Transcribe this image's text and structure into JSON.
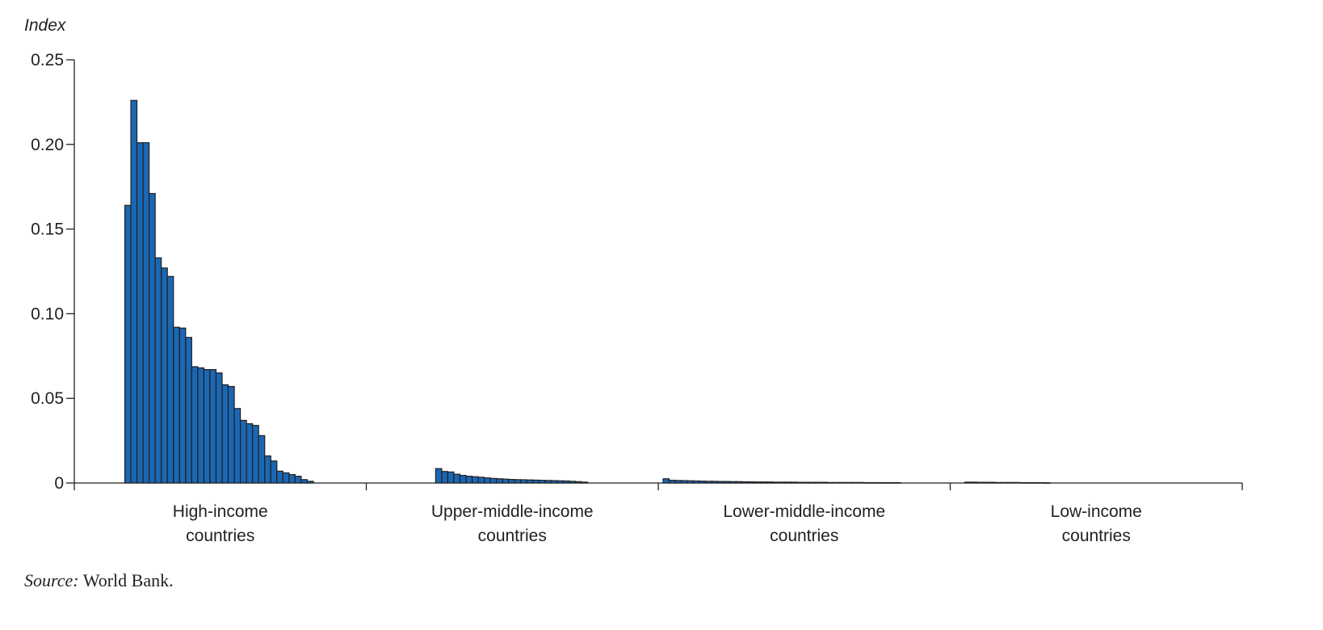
{
  "chart_data": {
    "type": "bar",
    "title": "",
    "ylabel": "Index",
    "xlabel": "",
    "ylim": [
      0,
      0.25
    ],
    "yticks": [
      "0",
      "0.05",
      "0.10",
      "0.15",
      "0.20",
      "0.25"
    ],
    "grid": false,
    "bar_color": "#1a67b3",
    "bar_edge_color": "#231f20",
    "groups": [
      {
        "label_line1": "High-income",
        "label_line2": "countries",
        "values": [
          0.164,
          0.226,
          0.201,
          0.201,
          0.171,
          0.133,
          0.127,
          0.122,
          0.092,
          0.0915,
          0.086,
          0.0687,
          0.068,
          0.067,
          0.067,
          0.065,
          0.058,
          0.057,
          0.044,
          0.037,
          0.035,
          0.034,
          0.028,
          0.016,
          0.013,
          0.007,
          0.006,
          0.005,
          0.004,
          0.002,
          0.001
        ]
      },
      {
        "label_line1": "Upper-middle-income",
        "label_line2": "countries",
        "values": [
          0.0085,
          0.0068,
          0.0065,
          0.0052,
          0.0045,
          0.004,
          0.0037,
          0.0034,
          0.003,
          0.0027,
          0.0025,
          0.0023,
          0.0021,
          0.002,
          0.0019,
          0.0018,
          0.0017,
          0.0016,
          0.0015,
          0.0014,
          0.0013,
          0.0012,
          0.001,
          0.0008,
          0.0005
        ]
      },
      {
        "label_line1": "Lower-middle-income",
        "label_line2": "countries",
        "values": [
          0.0025,
          0.0016,
          0.0015,
          0.0014,
          0.0013,
          0.0012,
          0.0011,
          0.001,
          0.001,
          0.0009,
          0.0009,
          0.0008,
          0.0008,
          0.0007,
          0.0007,
          0.0006,
          0.0006,
          0.0006,
          0.0005,
          0.0005,
          0.0005,
          0.0005,
          0.0004,
          0.0004,
          0.0004,
          0.0004,
          0.0004,
          0.0003,
          0.0003,
          0.0003,
          0.0003,
          0.0003,
          0.0003,
          0.0002,
          0.0002,
          0.0002,
          0.0002,
          0.0002,
          0.0002
        ]
      },
      {
        "label_line1": "Low-income",
        "label_line2": "countries",
        "values": [
          0.0005,
          0.0005,
          0.0004,
          0.0004,
          0.0004,
          0.0003,
          0.0003,
          0.0003,
          0.0003,
          0.0002,
          0.0002,
          0.0002,
          0.0002,
          0.0001
        ]
      }
    ]
  },
  "source": {
    "label": "Source:",
    "text": " World Bank."
  }
}
